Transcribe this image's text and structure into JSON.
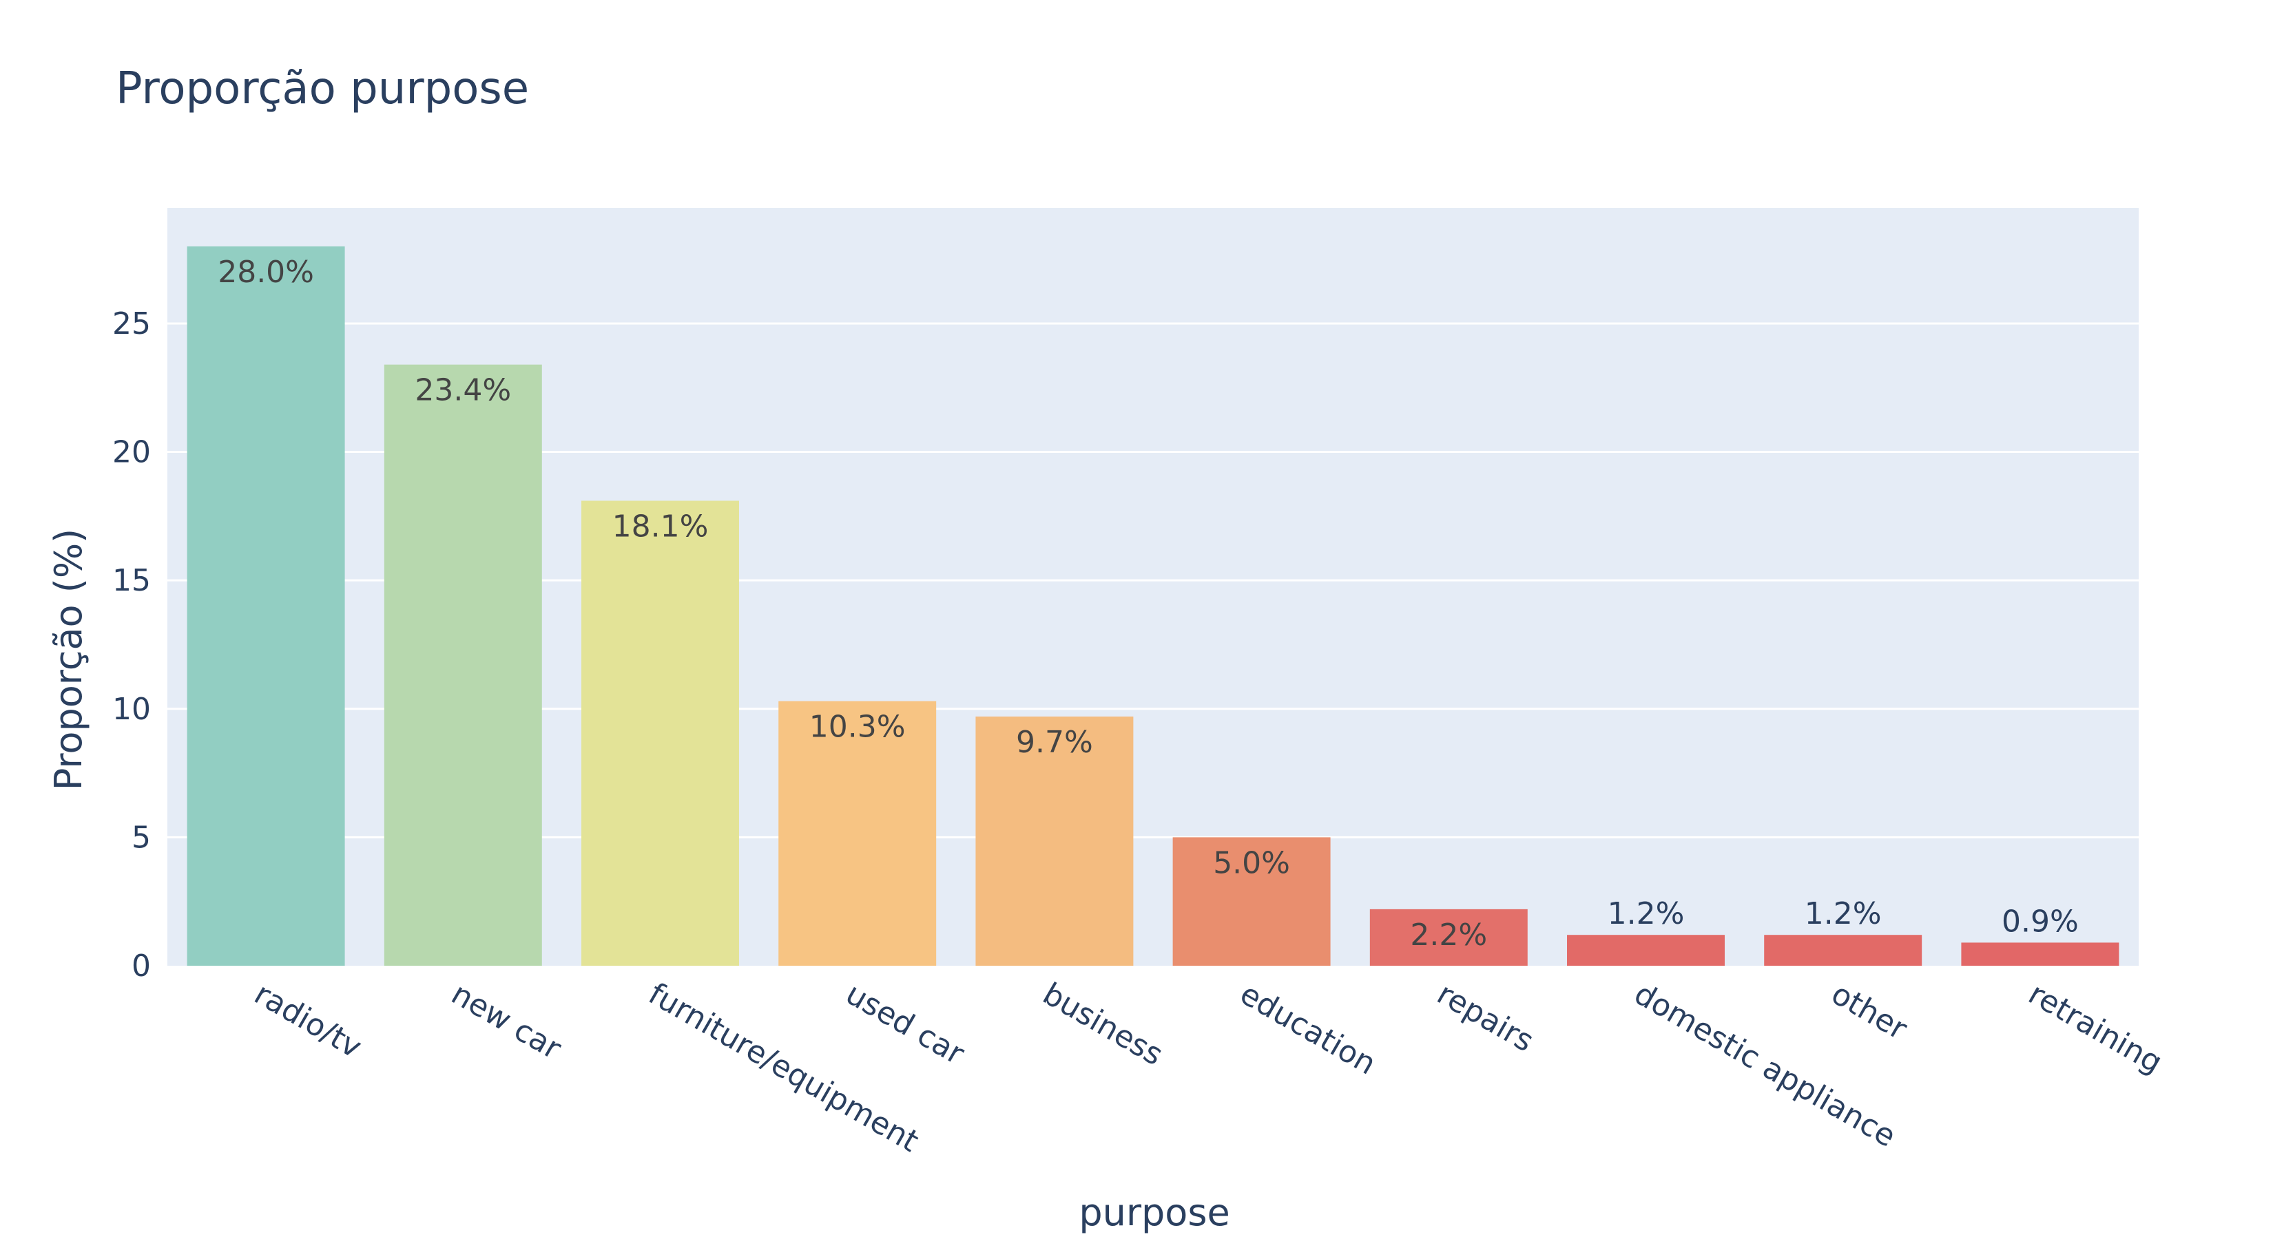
{
  "chart_data": {
    "type": "bar",
    "title": "Proporção purpose",
    "xlabel": "purpose",
    "ylabel": "Proporção (%)",
    "categories": [
      "radio/tv",
      "new car",
      "furniture/equipment",
      "used car",
      "business",
      "education",
      "repairs",
      "domestic appliance",
      "other",
      "retraining"
    ],
    "values": [
      28.0,
      23.4,
      18.1,
      10.3,
      9.7,
      5.0,
      2.2,
      1.2,
      1.2,
      0.9
    ],
    "data_labels": [
      "28.0%",
      "23.4%",
      "18.1%",
      "10.3%",
      "9.7%",
      "5.0%",
      "2.2%",
      "1.2%",
      "1.2%",
      "0.9%"
    ],
    "colors": [
      "#92cec2",
      "#b7d8ae",
      "#e3e397",
      "#f7c483",
      "#f4bc80",
      "#e98e6e",
      "#e3706a",
      "#e26a67",
      "#e26a67",
      "#e26767"
    ],
    "ylim": [
      0,
      29.5
    ],
    "yticks": [
      0,
      5,
      10,
      15,
      20,
      25
    ],
    "grid": true,
    "legend": "none",
    "plot_background": "#e5ecf6",
    "text_color": "#2a3f5f"
  }
}
